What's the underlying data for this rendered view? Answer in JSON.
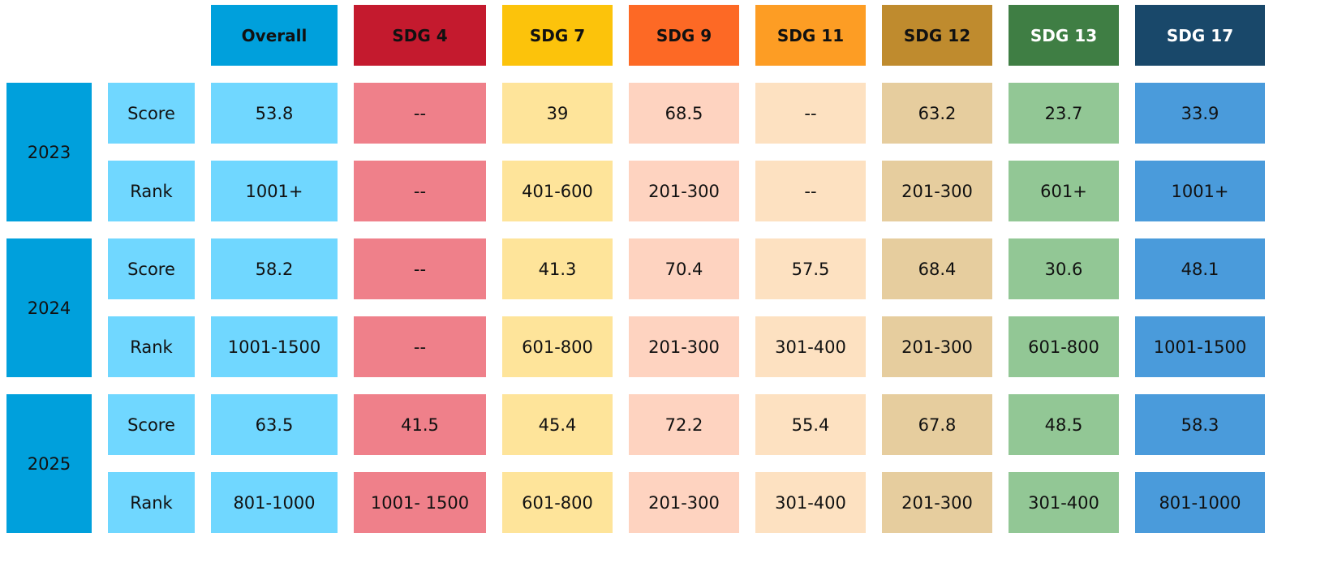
{
  "columns": [
    {
      "label": "Overall",
      "header_color": "#00A0DC",
      "cell_color": "#70D7FF",
      "header_text_color": "#111111"
    },
    {
      "label": "SDG 4",
      "header_color": "#C41A2E",
      "cell_color": "#EF808A",
      "header_text_color": "#111111"
    },
    {
      "label": "SDG 7",
      "header_color": "#FCC30B",
      "cell_color": "#FEE49A",
      "header_text_color": "#111111"
    },
    {
      "label": "SDG 9",
      "header_color": "#FD6925",
      "cell_color": "#FED3C0",
      "header_text_color": "#111111"
    },
    {
      "label": "SDG 11",
      "header_color": "#FD9D24",
      "cell_color": "#FDE1C1",
      "header_text_color": "#111111"
    },
    {
      "label": "SDG 12",
      "header_color": "#BF8B2E",
      "cell_color": "#E6CD9E",
      "header_text_color": "#111111"
    },
    {
      "label": "SDG 13",
      "header_color": "#3F7E44",
      "cell_color": "#92C795",
      "header_text_color": "#FFFFFF"
    },
    {
      "label": "SDG 17",
      "header_color": "#19486A",
      "cell_color": "#4A9BDB",
      "header_text_color": "#FFFFFF"
    }
  ],
  "year_color": "#00A0DC",
  "label_color": "#70D7FF",
  "years": [
    {
      "year": "2023",
      "rows": [
        {
          "label": "Score",
          "values": [
            "53.8",
            "--",
            "39",
            "68.5",
            "--",
            "63.2",
            "23.7",
            "33.9"
          ]
        },
        {
          "label": "Rank",
          "values": [
            "1001+",
            "--",
            "401-600",
            "201-300",
            "--",
            "201-300",
            "601+",
            "1001+"
          ]
        }
      ]
    },
    {
      "year": "2024",
      "rows": [
        {
          "label": "Score",
          "values": [
            "58.2",
            "--",
            "41.3",
            "70.4",
            "57.5",
            "68.4",
            "30.6",
            "48.1"
          ]
        },
        {
          "label": "Rank",
          "values": [
            "1001-1500",
            "--",
            "601-800",
            "201-300",
            "301-400",
            "201-300",
            "601-800",
            "1001-1500"
          ]
        }
      ]
    },
    {
      "year": "2025",
      "rows": [
        {
          "label": "Score",
          "values": [
            "63.5",
            "41.5",
            "45.4",
            "72.2",
            "55.4",
            "67.8",
            "48.5",
            "58.3"
          ]
        },
        {
          "label": "Rank",
          "values": [
            "801-1000",
            "1001- 1500",
            "601-800",
            "201-300",
            "301-400",
            "201-300",
            "301-400",
            "801-1000"
          ]
        }
      ]
    }
  ]
}
